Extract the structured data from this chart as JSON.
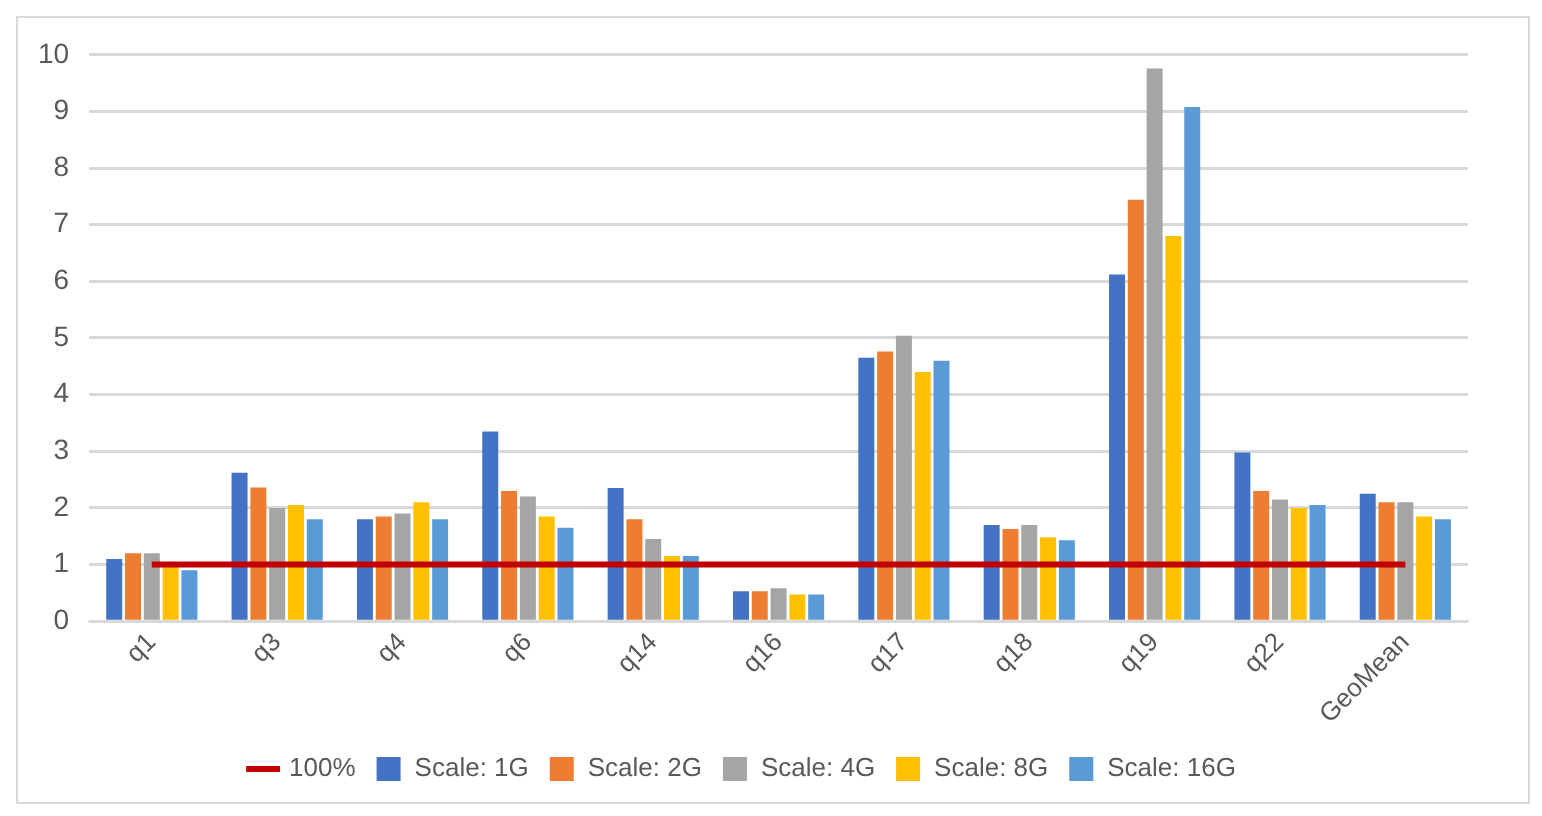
{
  "chart_data": {
    "type": "bar",
    "categories": [
      "q1",
      "q3",
      "q4",
      "q6",
      "q14",
      "q16",
      "q17",
      "q18",
      "q19",
      "q22",
      "GeoMean"
    ],
    "series": [
      {
        "name": "Scale: 1G",
        "color": "#4472c4",
        "values": [
          1.1,
          2.62,
          1.8,
          3.35,
          2.35,
          0.53,
          4.65,
          1.7,
          6.12,
          2.98,
          2.25
        ]
      },
      {
        "name": "Scale: 2G",
        "color": "#ed7d31",
        "values": [
          1.2,
          2.36,
          1.85,
          2.3,
          1.8,
          0.53,
          4.76,
          1.63,
          7.44,
          2.3,
          2.1
        ]
      },
      {
        "name": "Scale: 4G",
        "color": "#a5a5a5",
        "values": [
          1.2,
          2.0,
          1.9,
          2.2,
          1.45,
          0.58,
          5.04,
          1.7,
          9.76,
          2.15,
          2.1
        ]
      },
      {
        "name": "Scale: 8G",
        "color": "#ffc000",
        "values": [
          1.0,
          2.05,
          2.1,
          1.85,
          1.15,
          0.47,
          4.4,
          1.48,
          6.8,
          2.0,
          1.85
        ]
      },
      {
        "name": "Scale: 16G",
        "color": "#5b9bd5",
        "values": [
          0.9,
          1.8,
          1.8,
          1.65,
          1.15,
          0.47,
          4.6,
          1.43,
          9.08,
          2.05,
          1.8
        ]
      },
      {
        "name": "100%",
        "type": "line",
        "color": "#c00000",
        "values": [
          1,
          1,
          1,
          1,
          1,
          1,
          1,
          1,
          1,
          1,
          1
        ]
      }
    ],
    "ylim": [
      0,
      10
    ],
    "yticks": [
      0,
      1,
      2,
      3,
      4,
      5,
      6,
      7,
      8,
      9,
      10
    ],
    "grid": "y",
    "legend": "bottom",
    "marker": "none"
  }
}
